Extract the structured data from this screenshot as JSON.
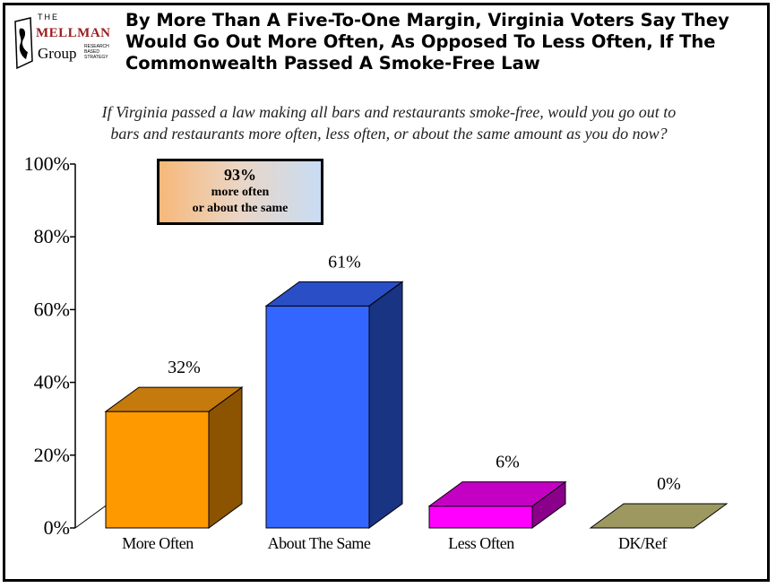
{
  "header": {
    "logo": {
      "the": "THE",
      "name": "MELLMAN",
      "group": "Group",
      "tagline": [
        "RESEARCH",
        "BASED",
        "STRATEGY"
      ]
    },
    "title_lines": [
      "By More Than A Five-To-One Margin, Virginia Voters Say They",
      "Would Go Out More Often, As Opposed To Less Often, If The",
      "Commonwealth Passed A Smoke-Free Law"
    ],
    "question_lines": [
      "If Virginia passed a law making all bars and restaurants smoke-free, would you go out to",
      "bars and restaurants more often, less often, or about the same amount as you do now?"
    ]
  },
  "callout": {
    "percent": "93%",
    "line1": "more often",
    "line2": "or about the same"
  },
  "chart_data": {
    "type": "bar",
    "categories": [
      "More Often",
      "About The Same",
      "Less Often",
      "DK/Ref"
    ],
    "values": [
      32,
      61,
      6,
      0
    ],
    "data_labels": [
      "32%",
      "61%",
      "6%",
      "0%"
    ],
    "ylim": [
      0,
      100
    ],
    "yticks": [
      0,
      20,
      40,
      60,
      80,
      100
    ],
    "ytick_labels": [
      "0%",
      "20%",
      "40%",
      "60%",
      "80%",
      "100%"
    ],
    "colors": {
      "front": [
        "#ff9900",
        "#3366ff",
        "#ff00ff",
        "#c0bc80"
      ],
      "top": [
        "#c57a0e",
        "#2a4ec6",
        "#c400c4",
        "#9c9860"
      ],
      "side": [
        "#8c5400",
        "#1a3484",
        "#8a008a",
        "#7a7648"
      ]
    }
  }
}
